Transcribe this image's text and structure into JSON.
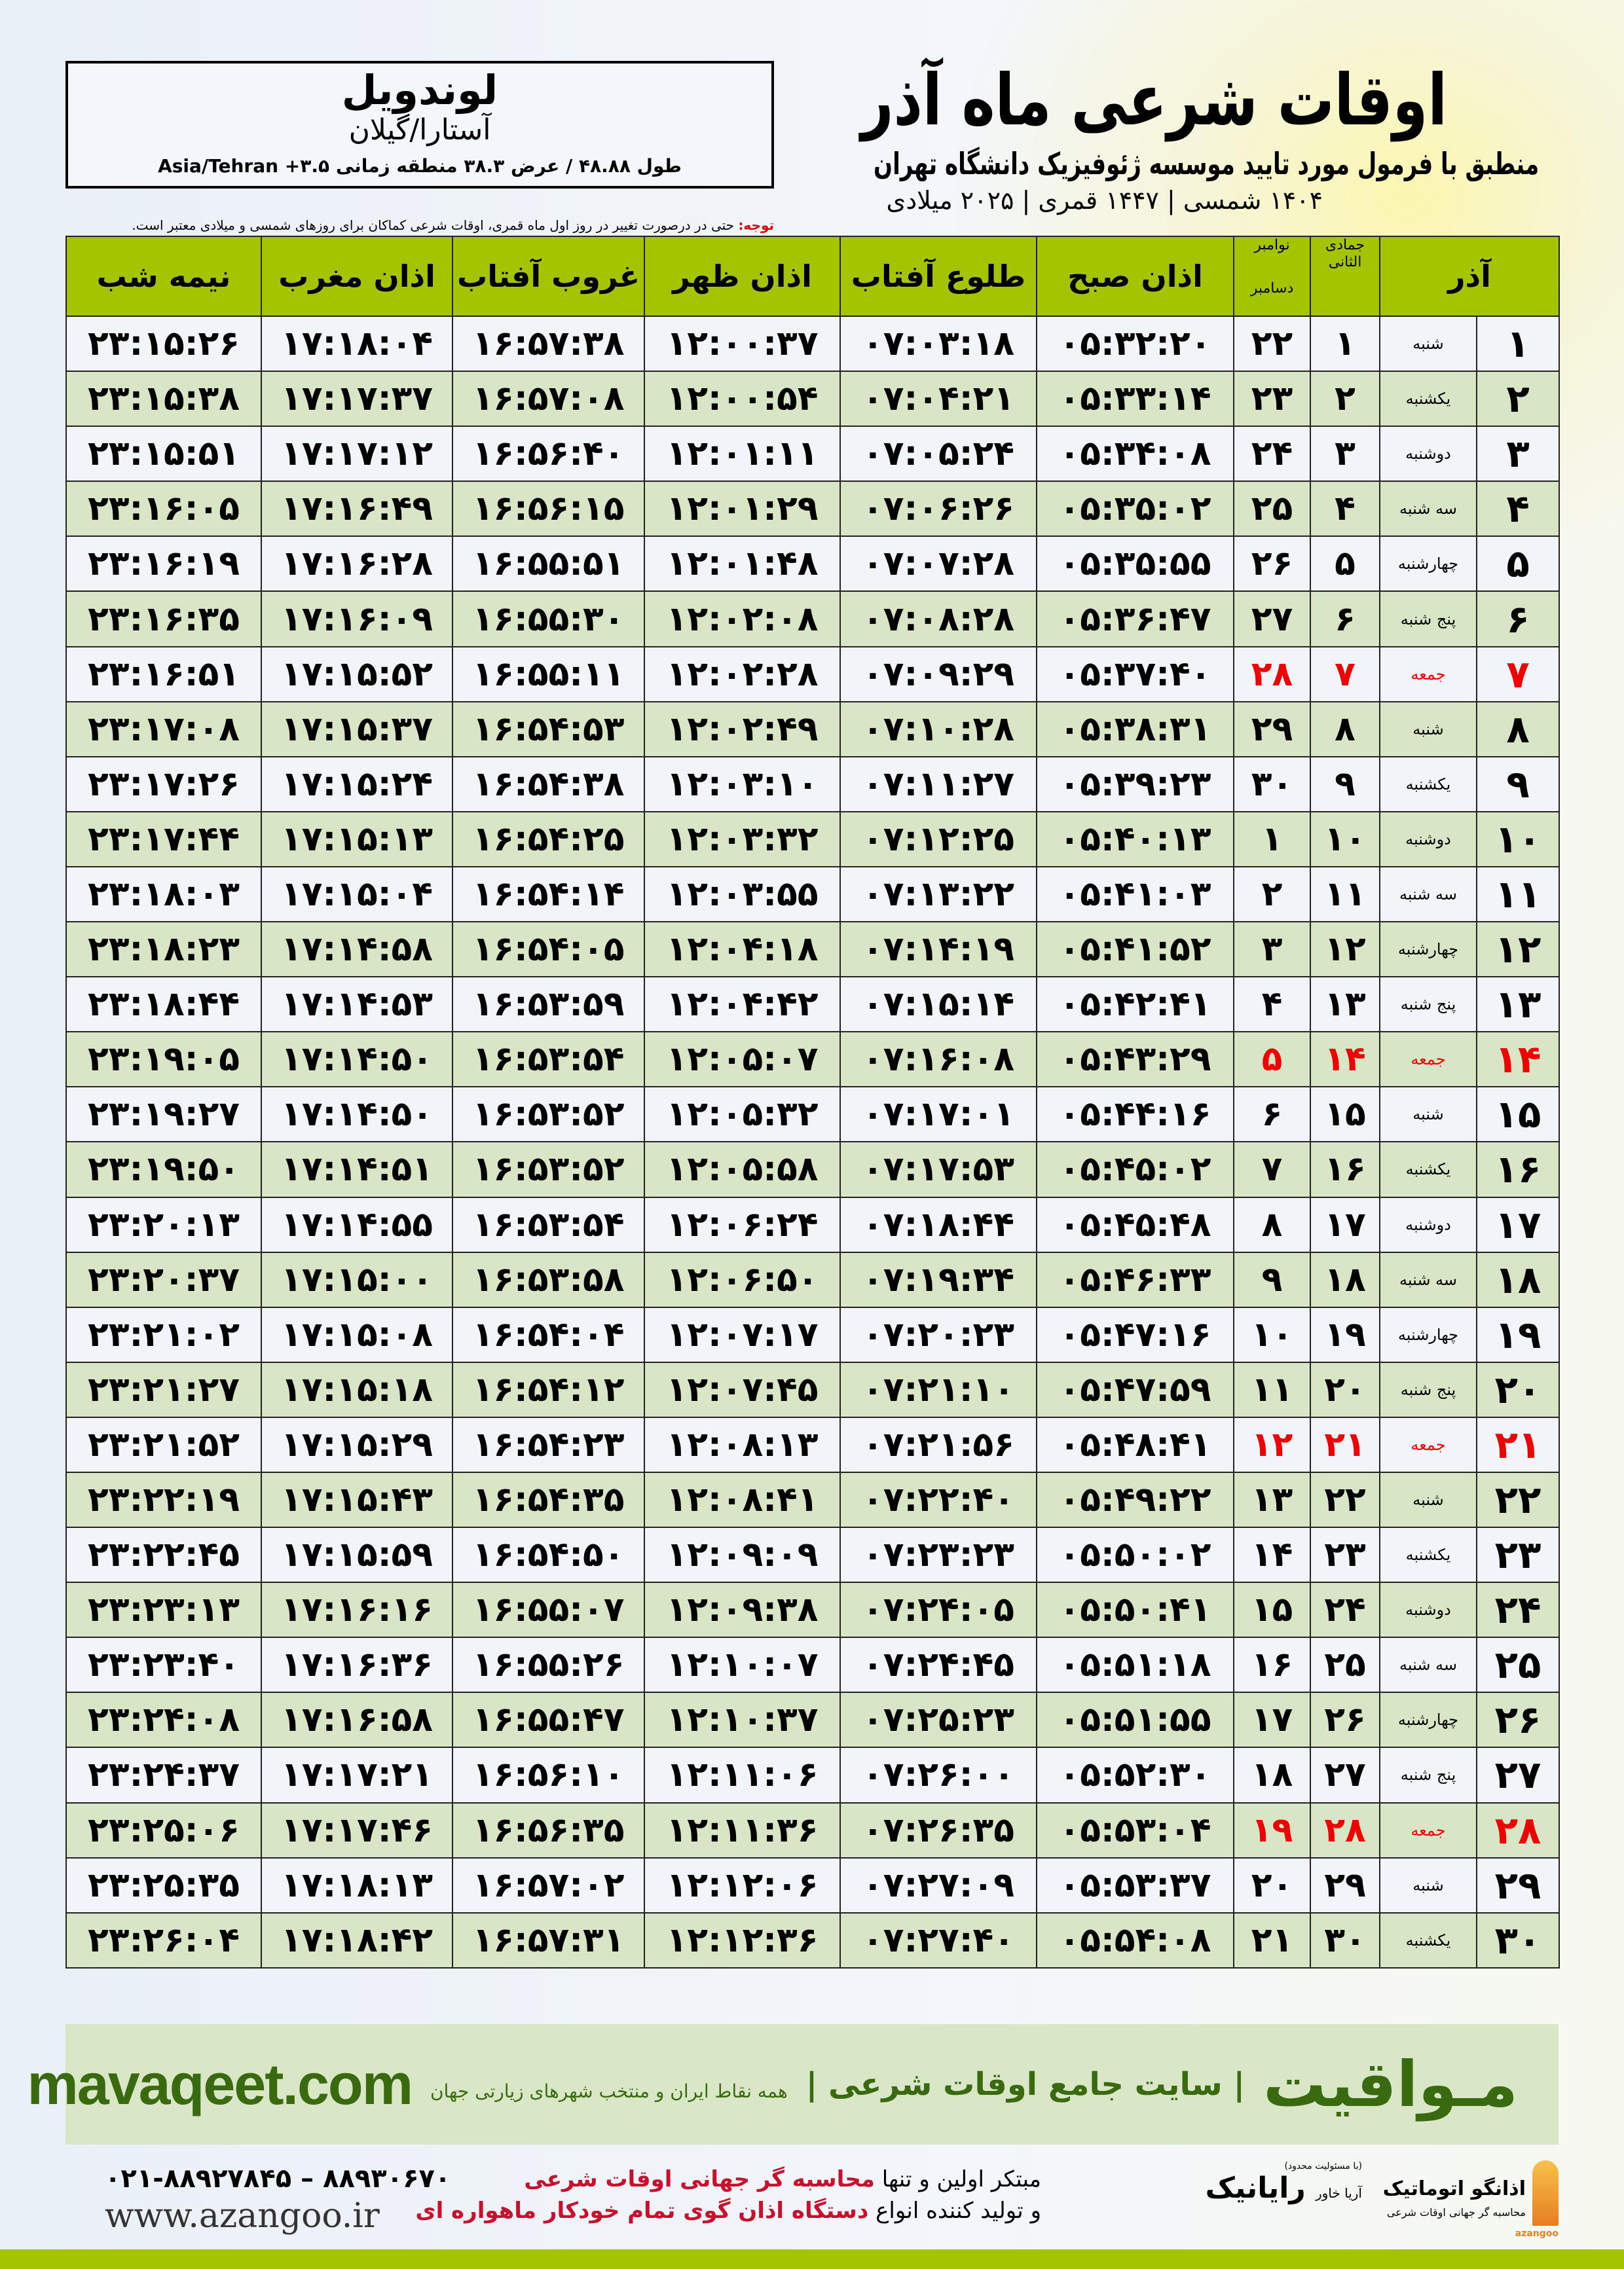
{
  "location": {
    "city": "لوندویل",
    "province": "آستارا/گیلان",
    "coords": "طول ۴۸.۸۸ / عرض ۳۸.۳ منطقه زمانی ۳.۵+ Asia/Tehran"
  },
  "header": {
    "title": "اوقات شرعی ماه آذر",
    "subtitle": "منطبق با فرمول مورد تایید موسسه ژئوفیزیک دانشگاه تهران",
    "dates": "۱۴۰۴ شمسی | ۱۴۴۷ قمری | ۲۰۲۵ میلادی"
  },
  "note": {
    "label": "توجه:",
    "text": " حتی در درصورت تغییر در روز اول ماه قمری، اوقات شرعی کماکان برای روزهای شمسی و میلادی معتبر است."
  },
  "table": {
    "columns": {
      "month": "آذر",
      "qamari": "جمادی الثانی",
      "miladi_top": "نوامبر",
      "miladi_bottom": "دسامبر",
      "fajr": "اذان صبح",
      "sunrise": "طلوع آفتاب",
      "dhuhr": "اذان ظهر",
      "sunset": "غروب آفتاب",
      "maghrib": "اذان مغرب",
      "midnight": "نیمه شب"
    },
    "accent_colors": {
      "header": "#a5c400",
      "friday": "#ee0000"
    },
    "rows": [
      [
        "۱",
        "شنبه",
        "۱",
        "۲۲",
        "۰۵:۳۲:۲۰",
        "۰۷:۰۳:۱۸",
        "۱۲:۰۰:۳۷",
        "۱۶:۵۷:۳۸",
        "۱۷:۱۸:۰۴",
        "۲۳:۱۵:۲۶"
      ],
      [
        "۲",
        "یکشنبه",
        "۲",
        "۲۳",
        "۰۵:۳۳:۱۴",
        "۰۷:۰۴:۲۱",
        "۱۲:۰۰:۵۴",
        "۱۶:۵۷:۰۸",
        "۱۷:۱۷:۳۷",
        "۲۳:۱۵:۳۸"
      ],
      [
        "۳",
        "دوشنبه",
        "۳",
        "۲۴",
        "۰۵:۳۴:۰۸",
        "۰۷:۰۵:۲۴",
        "۱۲:۰۱:۱۱",
        "۱۶:۵۶:۴۰",
        "۱۷:۱۷:۱۲",
        "۲۳:۱۵:۵۱"
      ],
      [
        "۴",
        "سه شنبه",
        "۴",
        "۲۵",
        "۰۵:۳۵:۰۲",
        "۰۷:۰۶:۲۶",
        "۱۲:۰۱:۲۹",
        "۱۶:۵۶:۱۵",
        "۱۷:۱۶:۴۹",
        "۲۳:۱۶:۰۵"
      ],
      [
        "۵",
        "چهارشنبه",
        "۵",
        "۲۶",
        "۰۵:۳۵:۵۵",
        "۰۷:۰۷:۲۸",
        "۱۲:۰۱:۴۸",
        "۱۶:۵۵:۵۱",
        "۱۷:۱۶:۲۸",
        "۲۳:۱۶:۱۹"
      ],
      [
        "۶",
        "پنج شنبه",
        "۶",
        "۲۷",
        "۰۵:۳۶:۴۷",
        "۰۷:۰۸:۲۸",
        "۱۲:۰۲:۰۸",
        "۱۶:۵۵:۳۰",
        "۱۷:۱۶:۰۹",
        "۲۳:۱۶:۳۵"
      ],
      [
        "۷",
        "جمعه",
        "۷",
        "۲۸",
        "۰۵:۳۷:۴۰",
        "۰۷:۰۹:۲۹",
        "۱۲:۰۲:۲۸",
        "۱۶:۵۵:۱۱",
        "۱۷:۱۵:۵۲",
        "۲۳:۱۶:۵۱"
      ],
      [
        "۸",
        "شنبه",
        "۸",
        "۲۹",
        "۰۵:۳۸:۳۱",
        "۰۷:۱۰:۲۸",
        "۱۲:۰۲:۴۹",
        "۱۶:۵۴:۵۳",
        "۱۷:۱۵:۳۷",
        "۲۳:۱۷:۰۸"
      ],
      [
        "۹",
        "یکشنبه",
        "۹",
        "۳۰",
        "۰۵:۳۹:۲۳",
        "۰۷:۱۱:۲۷",
        "۱۲:۰۳:۱۰",
        "۱۶:۵۴:۳۸",
        "۱۷:۱۵:۲۴",
        "۲۳:۱۷:۲۶"
      ],
      [
        "۱۰",
        "دوشنبه",
        "۱۰",
        "۱",
        "۰۵:۴۰:۱۳",
        "۰۷:۱۲:۲۵",
        "۱۲:۰۳:۳۲",
        "۱۶:۵۴:۲۵",
        "۱۷:۱۵:۱۳",
        "۲۳:۱۷:۴۴"
      ],
      [
        "۱۱",
        "سه شنبه",
        "۱۱",
        "۲",
        "۰۵:۴۱:۰۳",
        "۰۷:۱۳:۲۲",
        "۱۲:۰۳:۵۵",
        "۱۶:۵۴:۱۴",
        "۱۷:۱۵:۰۴",
        "۲۳:۱۸:۰۳"
      ],
      [
        "۱۲",
        "چهارشنبه",
        "۱۲",
        "۳",
        "۰۵:۴۱:۵۲",
        "۰۷:۱۴:۱۹",
        "۱۲:۰۴:۱۸",
        "۱۶:۵۴:۰۵",
        "۱۷:۱۴:۵۸",
        "۲۳:۱۸:۲۳"
      ],
      [
        "۱۳",
        "پنج شنبه",
        "۱۳",
        "۴",
        "۰۵:۴۲:۴۱",
        "۰۷:۱۵:۱۴",
        "۱۲:۰۴:۴۲",
        "۱۶:۵۳:۵۹",
        "۱۷:۱۴:۵۳",
        "۲۳:۱۸:۴۴"
      ],
      [
        "۱۴",
        "جمعه",
        "۱۴",
        "۵",
        "۰۵:۴۳:۲۹",
        "۰۷:۱۶:۰۸",
        "۱۲:۰۵:۰۷",
        "۱۶:۵۳:۵۴",
        "۱۷:۱۴:۵۰",
        "۲۳:۱۹:۰۵"
      ],
      [
        "۱۵",
        "شنبه",
        "۱۵",
        "۶",
        "۰۵:۴۴:۱۶",
        "۰۷:۱۷:۰۱",
        "۱۲:۰۵:۳۲",
        "۱۶:۵۳:۵۲",
        "۱۷:۱۴:۵۰",
        "۲۳:۱۹:۲۷"
      ],
      [
        "۱۶",
        "یکشنبه",
        "۱۶",
        "۷",
        "۰۵:۴۵:۰۲",
        "۰۷:۱۷:۵۳",
        "۱۲:۰۵:۵۸",
        "۱۶:۵۳:۵۲",
        "۱۷:۱۴:۵۱",
        "۲۳:۱۹:۵۰"
      ],
      [
        "۱۷",
        "دوشنبه",
        "۱۷",
        "۸",
        "۰۵:۴۵:۴۸",
        "۰۷:۱۸:۴۴",
        "۱۲:۰۶:۲۴",
        "۱۶:۵۳:۵۴",
        "۱۷:۱۴:۵۵",
        "۲۳:۲۰:۱۳"
      ],
      [
        "۱۸",
        "سه شنبه",
        "۱۸",
        "۹",
        "۰۵:۴۶:۳۳",
        "۰۷:۱۹:۳۴",
        "۱۲:۰۶:۵۰",
        "۱۶:۵۳:۵۸",
        "۱۷:۱۵:۰۰",
        "۲۳:۲۰:۳۷"
      ],
      [
        "۱۹",
        "چهارشنبه",
        "۱۹",
        "۱۰",
        "۰۵:۴۷:۱۶",
        "۰۷:۲۰:۲۳",
        "۱۲:۰۷:۱۷",
        "۱۶:۵۴:۰۴",
        "۱۷:۱۵:۰۸",
        "۲۳:۲۱:۰۲"
      ],
      [
        "۲۰",
        "پنج شنبه",
        "۲۰",
        "۱۱",
        "۰۵:۴۷:۵۹",
        "۰۷:۲۱:۱۰",
        "۱۲:۰۷:۴۵",
        "۱۶:۵۴:۱۲",
        "۱۷:۱۵:۱۸",
        "۲۳:۲۱:۲۷"
      ],
      [
        "۲۱",
        "جمعه",
        "۲۱",
        "۱۲",
        "۰۵:۴۸:۴۱",
        "۰۷:۲۱:۵۶",
        "۱۲:۰۸:۱۳",
        "۱۶:۵۴:۲۳",
        "۱۷:۱۵:۲۹",
        "۲۳:۲۱:۵۲"
      ],
      [
        "۲۲",
        "شنبه",
        "۲۲",
        "۱۳",
        "۰۵:۴۹:۲۲",
        "۰۷:۲۲:۴۰",
        "۱۲:۰۸:۴۱",
        "۱۶:۵۴:۳۵",
        "۱۷:۱۵:۴۳",
        "۲۳:۲۲:۱۹"
      ],
      [
        "۲۳",
        "یکشنبه",
        "۲۳",
        "۱۴",
        "۰۵:۵۰:۰۲",
        "۰۷:۲۳:۲۳",
        "۱۲:۰۹:۰۹",
        "۱۶:۵۴:۵۰",
        "۱۷:۱۵:۵۹",
        "۲۳:۲۲:۴۵"
      ],
      [
        "۲۴",
        "دوشنبه",
        "۲۴",
        "۱۵",
        "۰۵:۵۰:۴۱",
        "۰۷:۲۴:۰۵",
        "۱۲:۰۹:۳۸",
        "۱۶:۵۵:۰۷",
        "۱۷:۱۶:۱۶",
        "۲۳:۲۳:۱۳"
      ],
      [
        "۲۵",
        "سه شنبه",
        "۲۵",
        "۱۶",
        "۰۵:۵۱:۱۸",
        "۰۷:۲۴:۴۵",
        "۱۲:۱۰:۰۷",
        "۱۶:۵۵:۲۶",
        "۱۷:۱۶:۳۶",
        "۲۳:۲۳:۴۰"
      ],
      [
        "۲۶",
        "چهارشنبه",
        "۲۶",
        "۱۷",
        "۰۵:۵۱:۵۵",
        "۰۷:۲۵:۲۳",
        "۱۲:۱۰:۳۷",
        "۱۶:۵۵:۴۷",
        "۱۷:۱۶:۵۸",
        "۲۳:۲۴:۰۸"
      ],
      [
        "۲۷",
        "پنج شنبه",
        "۲۷",
        "۱۸",
        "۰۵:۵۲:۳۰",
        "۰۷:۲۶:۰۰",
        "۱۲:۱۱:۰۶",
        "۱۶:۵۶:۱۰",
        "۱۷:۱۷:۲۱",
        "۲۳:۲۴:۳۷"
      ],
      [
        "۲۸",
        "جمعه",
        "۲۸",
        "۱۹",
        "۰۵:۵۳:۰۴",
        "۰۷:۲۶:۳۵",
        "۱۲:۱۱:۳۶",
        "۱۶:۵۶:۳۵",
        "۱۷:۱۷:۴۶",
        "۲۳:۲۵:۰۶"
      ],
      [
        "۲۹",
        "شنبه",
        "۲۹",
        "۲۰",
        "۰۵:۵۳:۳۷",
        "۰۷:۲۷:۰۹",
        "۱۲:۱۲:۰۶",
        "۱۶:۵۷:۰۲",
        "۱۷:۱۸:۱۳",
        "۲۳:۲۵:۳۵"
      ],
      [
        "۳۰",
        "یکشنبه",
        "۳۰",
        "۲۱",
        "۰۵:۵۴:۰۸",
        "۰۷:۲۷:۴۰",
        "۱۲:۱۲:۳۶",
        "۱۶:۵۷:۳۱",
        "۱۷:۱۸:۴۲",
        "۲۳:۲۶:۰۴"
      ]
    ]
  },
  "footer": {
    "brand": "مـواقیت",
    "slogan": "| سایت جامع اوقات شرعی |",
    "slogan_sub": "همه نقاط ایران و منتخب شهرهای زیارتی جهان",
    "site": "mavaqeet.com",
    "phone": "۰۲۱-۸۸۹۲۷۸۴۵ – ۸۸۹۳۰۶۷۰",
    "web": "www.azangoo.ir",
    "adv_line1_a": "مبتکر اولین و تنها ",
    "adv_line1_b": "محاسبه گر جهانی اوقات شرعی",
    "adv_line2_a": "و تولید کننده انواع ",
    "adv_line2_b": "دستگاه اذان گوی تمام خودکار ماهواره ای",
    "logo_azangoo": "اذانگو اتوماتیک",
    "logo_azangoo_sub": "محاسبه گر جهانی اوقات شرعی",
    "logo_azangoo_en": "azangoo",
    "logo_rayanik": "رایانیک",
    "logo_rayanik_small": "(با مسئولیت محدود)",
    "logo_rayanik_kh": "آریا خاور"
  }
}
